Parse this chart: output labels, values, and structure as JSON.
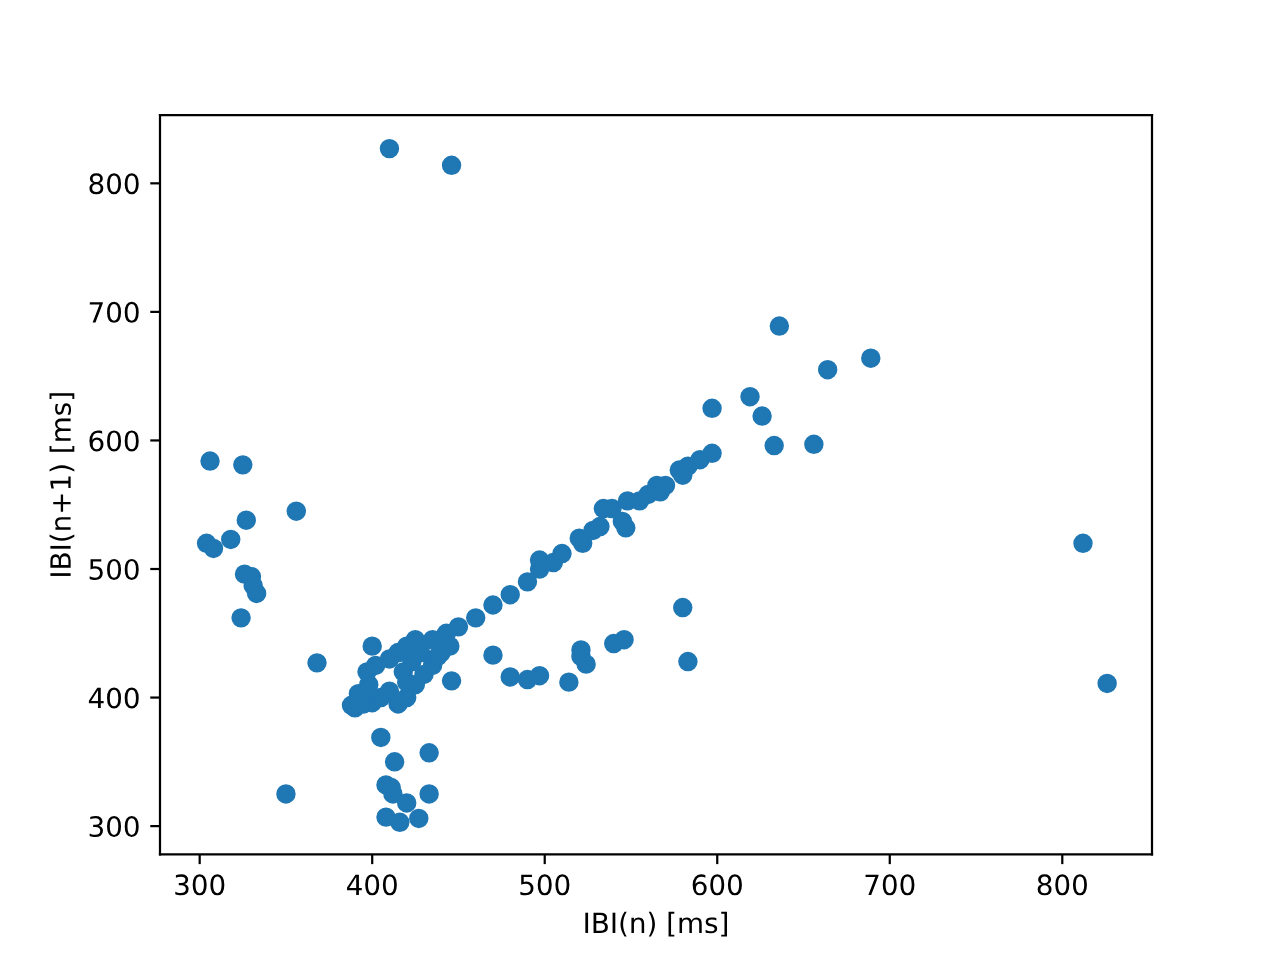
{
  "chart_data": {
    "type": "scatter",
    "xlabel": "IBI(n) [ms]",
    "ylabel": "IBI(n+1) [ms]",
    "x": [
      410,
      446,
      304,
      308,
      306,
      318,
      325,
      327,
      324,
      326,
      330,
      331,
      333,
      356,
      368,
      400,
      350,
      405,
      413,
      408,
      411,
      412,
      408,
      416,
      420,
      433,
      433,
      427,
      446,
      470,
      480,
      490,
      497,
      514,
      521,
      521,
      524,
      540,
      546,
      580,
      583,
      597,
      619,
      626,
      633,
      636,
      656,
      664,
      689,
      812,
      826,
      450,
      460,
      470,
      480,
      490,
      497,
      497,
      505,
      510,
      520,
      522,
      528,
      532,
      534,
      539,
      545,
      547,
      548,
      555,
      560,
      565,
      567,
      570,
      578,
      580,
      583,
      590,
      597,
      390,
      398,
      400,
      405,
      410,
      410,
      415,
      415,
      418,
      420,
      420,
      423,
      425,
      425,
      428,
      430,
      435,
      435,
      438,
      440,
      443,
      445,
      395,
      392,
      397,
      420,
      388,
      402
    ],
    "values": [
      827,
      814,
      520,
      516,
      584,
      523,
      581,
      538,
      462,
      496,
      494,
      487,
      481,
      545,
      427,
      440,
      325,
      369,
      350,
      332,
      330,
      325,
      307,
      303,
      318,
      325,
      357,
      306,
      413,
      433,
      416,
      414,
      417,
      412,
      437,
      432,
      426,
      442,
      445,
      470,
      428,
      625,
      634,
      619,
      596,
      689,
      597,
      655,
      664,
      520,
      411,
      455,
      462,
      472,
      480,
      490,
      500,
      507,
      505,
      512,
      524,
      520,
      530,
      533,
      547,
      547,
      537,
      532,
      553,
      553,
      558,
      565,
      560,
      565,
      577,
      573,
      580,
      585,
      590,
      392,
      410,
      396,
      400,
      405,
      430,
      395,
      435,
      420,
      440,
      400,
      428,
      445,
      410,
      435,
      418,
      425,
      445,
      432,
      435,
      450,
      440,
      395,
      403,
      420,
      412,
      394,
      425
    ],
    "color": "#1f77b4",
    "marker": "circle",
    "xlim": [
      277,
      852
    ],
    "ylim": [
      278,
      853
    ],
    "xticks": [
      300,
      400,
      500,
      600,
      700,
      800
    ],
    "yticks": [
      300,
      400,
      500,
      600,
      700,
      800
    ],
    "grid": false
  }
}
